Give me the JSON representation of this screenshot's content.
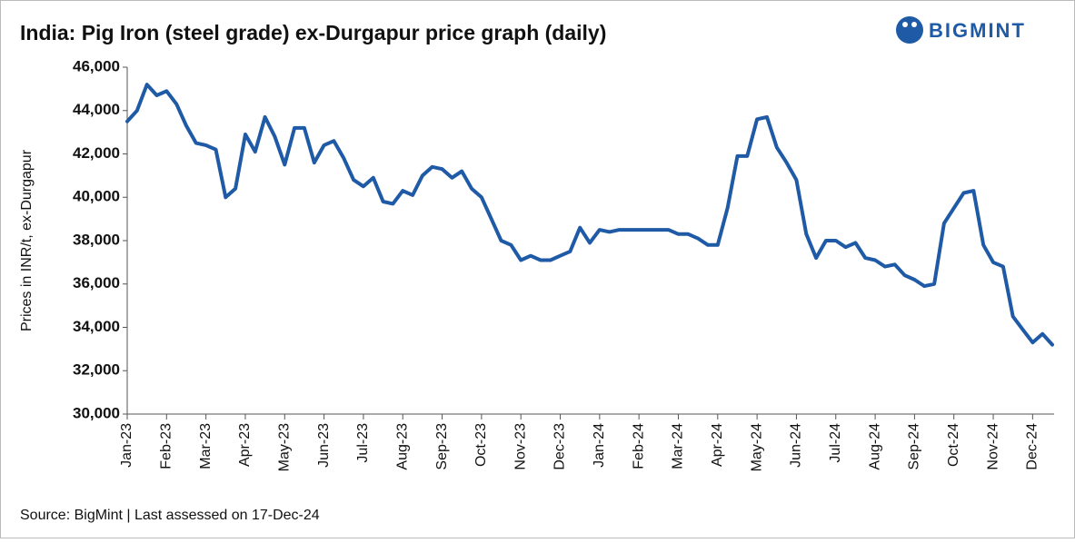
{
  "chart_data": {
    "type": "line",
    "title": "India: Pig Iron (steel grade) ex-Durgapur price graph (daily)",
    "brand": "BIGMINT",
    "y_label": "Prices in INR/t, ex-Durgapur",
    "source": "Source: BigMint |  Last assessed on 17-Dec-24",
    "categories": [
      "Jan-23",
      null,
      null,
      null,
      "Feb-23",
      null,
      null,
      null,
      "Mar-23",
      null,
      null,
      null,
      "Apr-23",
      null,
      null,
      null,
      "May-23",
      null,
      null,
      null,
      "Jun-23",
      null,
      null,
      null,
      "Jul-23",
      null,
      null,
      null,
      "Aug-23",
      null,
      null,
      null,
      "Sep-23",
      null,
      null,
      null,
      "Oct-23",
      null,
      null,
      null,
      "Nov-23",
      null,
      null,
      null,
      "Dec-23",
      null,
      null,
      null,
      "Jan-24",
      null,
      null,
      null,
      "Feb-24",
      null,
      null,
      null,
      "Mar-24",
      null,
      null,
      null,
      "Apr-24",
      null,
      null,
      null,
      "May-24",
      null,
      null,
      null,
      "Jun-24",
      null,
      null,
      null,
      "Jul-24",
      null,
      null,
      null,
      "Aug-24",
      null,
      null,
      null,
      "Sep-24",
      null,
      null,
      null,
      "Oct-24",
      null,
      null,
      null,
      "Nov-24",
      null,
      null,
      null,
      "Dec-24",
      null,
      null
    ],
    "series": [
      {
        "name": "Pig Iron (steel grade) ex-Durgapur",
        "color": "#1f5aa6",
        "values": [
          43500,
          44000,
          45200,
          44700,
          44900,
          44300,
          43300,
          42500,
          42400,
          42200,
          40000,
          40400,
          42900,
          42100,
          43700,
          42800,
          41500,
          43200,
          43200,
          41600,
          42400,
          42600,
          41800,
          40800,
          40500,
          40900,
          39800,
          39700,
          40300,
          40100,
          41000,
          41400,
          41300,
          40900,
          41200,
          40400,
          40000,
          39000,
          38000,
          37800,
          37100,
          37300,
          37100,
          37100,
          37300,
          37500,
          38600,
          37900,
          38500,
          38400,
          38500,
          38500,
          38500,
          38500,
          38500,
          38500,
          38300,
          38300,
          38100,
          37800,
          37800,
          39500,
          41900,
          41900,
          43600,
          43700,
          42300,
          41600,
          40800,
          38300,
          37200,
          38000,
          38000,
          37700,
          37900,
          37200,
          37100,
          36800,
          36900,
          36400,
          36200,
          35900,
          36000,
          38800,
          39500,
          40200,
          40300,
          37800,
          37000,
          36800,
          34500,
          33900,
          33300,
          33700,
          33200
        ]
      }
    ],
    "ylim": [
      30000,
      46000
    ],
    "yticks": [
      {
        "value": 30000,
        "label": "30,000"
      },
      {
        "value": 32000,
        "label": "32,000"
      },
      {
        "value": 34000,
        "label": "34,000"
      },
      {
        "value": 36000,
        "label": "36,000"
      },
      {
        "value": 38000,
        "label": "38,000"
      },
      {
        "value": 40000,
        "label": "40,000"
      },
      {
        "value": 42000,
        "label": "42,000"
      },
      {
        "value": 44000,
        "label": "44,000"
      },
      {
        "value": 46000,
        "label": "46,000"
      }
    ],
    "grid": false
  }
}
